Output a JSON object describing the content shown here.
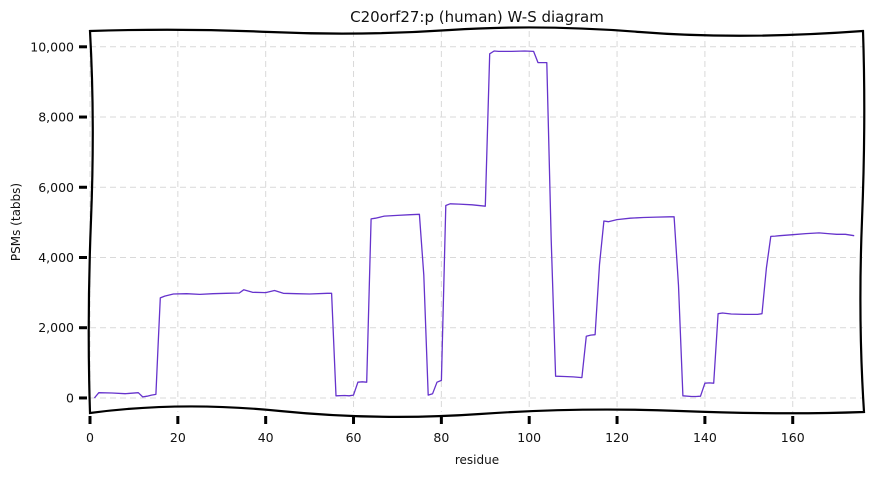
{
  "chart_data": {
    "type": "line",
    "title": "C20orf27:p (human) W-S diagram",
    "xlabel": "residue",
    "ylabel": "PSMs (tabbs)",
    "xlim": [
      0,
      176
    ],
    "ylim": [
      -400,
      10450
    ],
    "xticks": [
      0,
      20,
      40,
      60,
      80,
      100,
      120,
      140,
      160
    ],
    "xtick_labels": [
      "0",
      "20",
      "40",
      "60",
      "80",
      "100",
      "120",
      "140",
      "160"
    ],
    "yticks": [
      0,
      2000,
      4000,
      6000,
      8000,
      10000
    ],
    "ytick_labels": [
      "0",
      "2,000",
      "4,000",
      "6,000",
      "8,000",
      "10,000"
    ],
    "grid": true,
    "colors": {
      "series": "#6633cc"
    },
    "series": [
      {
        "x": [
          1,
          2,
          5,
          8,
          11,
          12,
          13,
          14,
          15,
          15.5,
          16,
          17,
          19,
          22,
          25,
          28,
          31,
          34,
          35,
          37,
          40,
          42,
          44,
          47,
          50,
          54,
          55,
          56,
          58,
          59,
          60,
          61,
          62,
          63,
          64,
          65,
          67,
          70,
          73,
          75,
          76,
          77,
          78,
          79,
          80,
          81,
          82,
          84,
          87,
          90,
          91,
          92,
          93,
          96,
          99,
          101,
          102,
          103,
          104,
          105,
          106,
          108,
          110,
          112,
          113,
          114,
          115,
          116,
          117,
          118,
          120,
          123,
          126,
          129,
          132,
          133,
          134,
          135,
          137,
          138,
          139,
          140,
          141,
          142,
          143,
          144,
          146,
          149,
          152,
          153,
          154,
          155,
          156,
          157,
          160,
          163,
          166,
          168,
          170,
          172,
          174
        ],
        "y": [
          0,
          150,
          140,
          120,
          150,
          30,
          50,
          80,
          100,
          1500,
          2850,
          2900,
          2960,
          2970,
          2950,
          2970,
          2980,
          2990,
          3080,
          3010,
          3000,
          3060,
          2980,
          2970,
          2960,
          2980,
          2980,
          60,
          70,
          60,
          80,
          450,
          460,
          450,
          5100,
          5120,
          5180,
          5200,
          5220,
          5230,
          3500,
          80,
          120,
          450,
          500,
          5480,
          5530,
          5520,
          5500,
          5460,
          9800,
          9880,
          9870,
          9870,
          9880,
          9870,
          9550,
          9550,
          9550,
          4500,
          620,
          610,
          600,
          580,
          1760,
          1790,
          1800,
          3800,
          5040,
          5020,
          5080,
          5120,
          5140,
          5150,
          5160,
          5160,
          3200,
          60,
          40,
          40,
          50,
          420,
          430,
          420,
          2400,
          2420,
          2390,
          2380,
          2380,
          2400,
          3700,
          4600,
          4610,
          4620,
          4650,
          4680,
          4700,
          4680,
          4660,
          4660,
          4620
        ]
      }
    ]
  }
}
